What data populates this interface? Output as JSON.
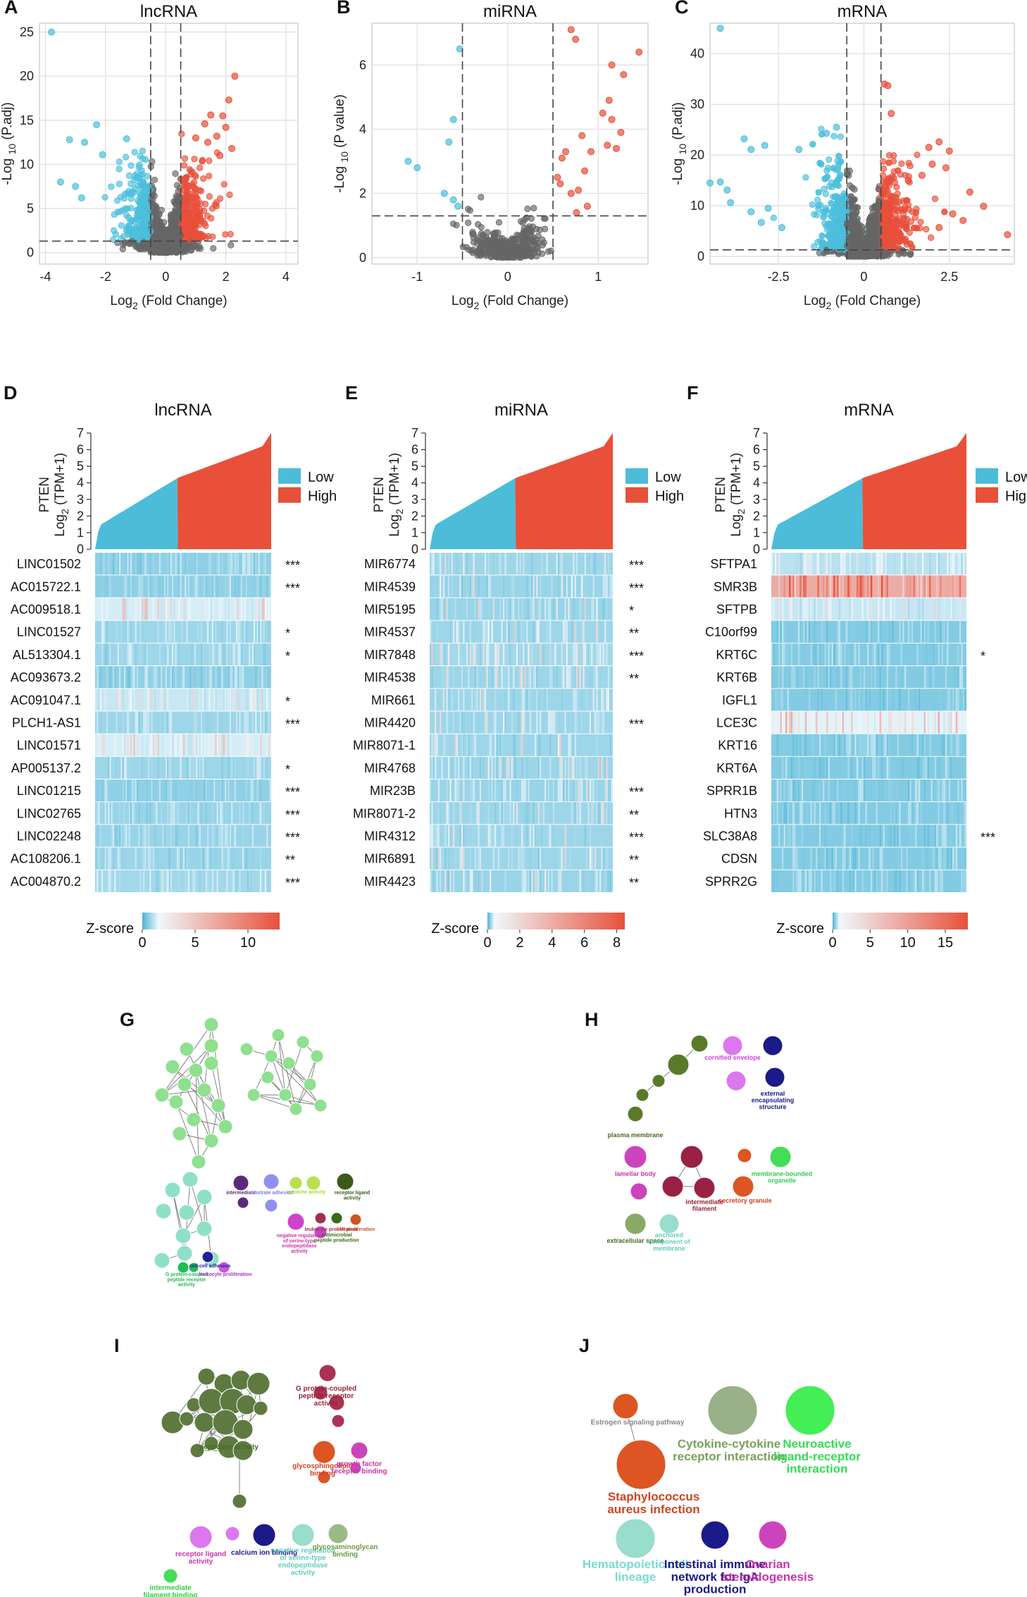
{
  "colors": {
    "up": "#e8503a",
    "down": "#4cbfdc",
    "ns": "#666666",
    "grid": "#e3e3e3",
    "low": "#4cbcd9",
    "high": "#e8503a",
    "heat": "#4fb3d3"
  },
  "chart_data": [
    {
      "type": "scatter",
      "label": "A",
      "title": "lncRNA",
      "xlabel": "Log2 (Fold Change)",
      "ylabel": "-Log 10 (P.adj)",
      "xlim": [
        -4.2,
        4.4
      ],
      "ylim": [
        -1.3,
        26
      ],
      "xticks": [
        -4,
        -2,
        0,
        2,
        4
      ],
      "yticks": [
        0,
        5,
        10,
        15,
        20,
        25
      ],
      "fc_cutoff": [
        -0.5,
        0.5
      ],
      "p_cutoff": 1.3,
      "highlight_up": [
        [
          2.3,
          20
        ],
        [
          2.1,
          17.3
        ],
        [
          1.9,
          15.5
        ],
        [
          1.5,
          15.6
        ],
        [
          1.3,
          14.6
        ],
        [
          2.0,
          14.2
        ],
        [
          1.7,
          13.2
        ],
        [
          1.0,
          13.0
        ],
        [
          1.4,
          12.5
        ],
        [
          2.2,
          11.8
        ],
        [
          1.8,
          11.0
        ]
      ],
      "highlight_down": [
        [
          -3.8,
          25
        ],
        [
          -2.3,
          14.5
        ],
        [
          -3.2,
          12.8
        ],
        [
          -2.7,
          12.5
        ],
        [
          -2.1,
          11.1
        ],
        [
          -1.3,
          12.9
        ],
        [
          -3.5,
          8
        ],
        [
          -3.0,
          7.5
        ],
        [
          -2.8,
          6.2
        ]
      ]
    },
    {
      "type": "scatter",
      "label": "B",
      "title": "miRNA",
      "xlabel": "Log2 (Fold Change)",
      "ylabel": "-Log 10 (P value)",
      "xlim": [
        -1.5,
        1.55
      ],
      "ylim": [
        -0.2,
        7.3
      ],
      "xticks": [
        -1,
        0,
        1
      ],
      "yticks": [
        0,
        2,
        4,
        6
      ],
      "fc_cutoff": [
        -0.5,
        0.5
      ],
      "p_cutoff": 1.3,
      "highlight_up": [
        [
          0.7,
          7.1
        ],
        [
          0.75,
          6.8
        ],
        [
          1.45,
          6.4
        ],
        [
          1.15,
          6.0
        ],
        [
          1.28,
          5.7
        ],
        [
          1.12,
          4.9
        ],
        [
          1.05,
          4.5
        ],
        [
          1.15,
          4.3
        ],
        [
          1.25,
          3.9
        ],
        [
          0.82,
          3.8
        ],
        [
          1.1,
          3.5
        ],
        [
          1.2,
          3.4
        ],
        [
          0.6,
          3.1
        ],
        [
          0.92,
          3.3
        ],
        [
          0.55,
          2.5
        ],
        [
          0.58,
          2.3
        ],
        [
          0.7,
          2.0
        ],
        [
          0.85,
          2.7
        ],
        [
          0.78,
          2.1
        ],
        [
          0.64,
          3.3
        ],
        [
          0.76,
          1.4
        ],
        [
          0.88,
          1.6
        ]
      ],
      "highlight_down": [
        [
          -0.53,
          6.5
        ],
        [
          -0.6,
          4.3
        ],
        [
          -0.65,
          3.6
        ],
        [
          -1.1,
          3.0
        ],
        [
          -1.0,
          2.8
        ],
        [
          -0.7,
          2.0
        ],
        [
          -0.6,
          1.8
        ],
        [
          -0.55,
          1.6
        ]
      ]
    },
    {
      "type": "scatter",
      "label": "C",
      "title": "mRNA",
      "xlabel": "Log2 (Fold Change)",
      "ylabel": "-Log 10 (P.adj)",
      "xlim": [
        -4.5,
        4.4
      ],
      "ylim": [
        -1.5,
        46
      ],
      "xticks": [
        -2.5,
        0,
        2.5
      ],
      "yticks": [
        0,
        10,
        20,
        30,
        40
      ],
      "fc_cutoff": [
        -0.5,
        0.5
      ],
      "p_cutoff": 1.3,
      "highlight_up": [
        [
          0.6,
          34
        ],
        [
          0.7,
          33.7
        ],
        [
          0.8,
          28.2
        ],
        [
          2.2,
          22.6
        ],
        [
          1.9,
          21.5
        ],
        [
          2.5,
          20.8
        ],
        [
          2.0,
          18.2
        ],
        [
          2.4,
          17.5
        ],
        [
          3.1,
          12.7
        ],
        [
          3.5,
          9.9
        ],
        [
          4.2,
          4.3
        ],
        [
          2.6,
          8.4
        ],
        [
          2.9,
          7.1
        ],
        [
          2.2,
          5.7
        ],
        [
          1.7,
          16
        ],
        [
          1.3,
          15
        ]
      ],
      "highlight_down": [
        [
          -4.2,
          45
        ],
        [
          -3.5,
          23.2
        ],
        [
          -3.3,
          21.1
        ],
        [
          -2.9,
          21.9
        ],
        [
          -4.2,
          14.7
        ],
        [
          -4.0,
          13.1
        ],
        [
          -3.9,
          10.6
        ],
        [
          -2.8,
          9.5
        ],
        [
          -3.3,
          8.8
        ],
        [
          -3.0,
          6.7
        ],
        [
          -2.4,
          5.7
        ],
        [
          -1.9,
          21.1
        ],
        [
          -1.1,
          24.3
        ],
        [
          -0.8,
          25.5
        ],
        [
          -4.5,
          14.5
        ]
      ]
    }
  ],
  "labels": {
    "D": "D",
    "E": "E",
    "F": "F",
    "G": "G",
    "H": "H",
    "I": "I",
    "J": "J"
  },
  "heat": {
    "legend": {
      "low": "Low",
      "high": "High"
    },
    "ylabel_a": "PTEN",
    "ylabel_b": "Log2 (TPM+1)",
    "zscore": "Z-score",
    "yticks": [
      0,
      1,
      2,
      3,
      4,
      5,
      6,
      7
    ],
    "panels": [
      {
        "label": "D",
        "title": "lncRNA",
        "ztick": [
          0,
          5,
          10
        ],
        "zmax": 13,
        "genes": [
          "LINC01502",
          "AC015722.1",
          "AC009518.1",
          "LINC01527",
          "AL513304.1",
          "AC093673.2",
          "AC091047.1",
          "PLCH1-AS1",
          "LINC01571",
          "AP005137.2",
          "LINC01215",
          "LINC02765",
          "LINC02248",
          "AC108206.1",
          "AC004870.2"
        ],
        "sig": [
          "***",
          "***",
          "",
          "*",
          "*",
          "",
          "*",
          "***",
          "",
          "*",
          "***",
          "***",
          "***",
          "**",
          "***"
        ],
        "mean": [
          0.25,
          0.25,
          0.5,
          0.3,
          0.3,
          0.25,
          0.45,
          0.3,
          0.5,
          0.3,
          0.25,
          0.28,
          0.28,
          0.28,
          0.32
        ]
      },
      {
        "label": "E",
        "title": "miRNA",
        "ztick": [
          0,
          2,
          4,
          6,
          8
        ],
        "zmax": 8.5,
        "genes": [
          "MIR6774",
          "MIR4539",
          "MIR5195",
          "MIR4537",
          "MIR7848",
          "MIR4538",
          "MIR661",
          "MIR4420",
          "MIR8071-1",
          "MIR4768",
          "MIR23B",
          "MIR8071-2",
          "MIR4312",
          "MIR6891",
          "MIR4423"
        ],
        "sig": [
          "***",
          "***",
          "*",
          "**",
          "***",
          "**",
          "",
          "***",
          "",
          "",
          "***",
          "**",
          "***",
          "**",
          "**"
        ],
        "mean": [
          0.3,
          0.28,
          0.28,
          0.3,
          0.32,
          0.3,
          0.3,
          0.3,
          0.3,
          0.3,
          0.28,
          0.3,
          0.3,
          0.3,
          0.28
        ]
      },
      {
        "label": "F",
        "title": "mRNA",
        "ztick": [
          0,
          5,
          10,
          15
        ],
        "zmax": 18,
        "genes": [
          "SFTPA1",
          "SMR3B",
          "SFTPB",
          "C10orf99",
          "KRT6C",
          "KRT6B",
          "IGFL1",
          "LCE3C",
          "KRT16",
          "KRT6A",
          "SPRR1B",
          "HTN3",
          "SLC38A8",
          "CDSN",
          "SPRR2G"
        ],
        "sig": [
          "",
          "",
          "",
          "",
          "*",
          "",
          "",
          "",
          "",
          "",
          "",
          "",
          "***",
          "",
          ""
        ],
        "mean": [
          0.4,
          0.78,
          0.45,
          0.2,
          0.2,
          0.2,
          0.2,
          0.55,
          0.2,
          0.2,
          0.2,
          0.2,
          0.2,
          0.2,
          0.2
        ]
      }
    ]
  },
  "networks": {
    "G": [
      {
        "text": "intermediate",
        "color": "#5a2a7a"
      },
      {
        "text": "substrate adhesion",
        "color": "#7a7af0"
      },
      {
        "text": "cytokine activity",
        "color": "#a8d93a"
      },
      {
        "text": "receptor ligand activity",
        "color": "#3a5a1a"
      },
      {
        "text": "negative regulation of serine-type endopeptidase activity",
        "color": "#cc33aa"
      },
      {
        "text": "leukocyte proliferation",
        "color": "#a03050"
      },
      {
        "text": "antimicrobial peptide production",
        "color": "#3a6a1a"
      },
      {
        "text": "cell proliferation",
        "color": "#cc5522"
      },
      {
        "text": "G protein-coupled peptide receptor activity",
        "color": "#22bb55"
      },
      {
        "text": "cell-cell adhesion",
        "color": "#222299"
      },
      {
        "text": "leukocyte proliferation",
        "color": "#aa33cc"
      }
    ],
    "H": [
      {
        "text": "cornified envelope",
        "color": "#cc44dd"
      },
      {
        "text": "external encapsulating structure",
        "color": "#1a1a88"
      },
      {
        "text": "plasma membrane",
        "color": "#4a6a22"
      },
      {
        "text": "lamellar body",
        "color": "#cc33aa"
      },
      {
        "text": "intermediate filament",
        "color": "#992233"
      },
      {
        "text": "secretory granule",
        "color": "#cc4422"
      },
      {
        "text": "membrane-bounded organelle",
        "color": "#33cc55"
      },
      {
        "text": "extracellular space",
        "color": "#4a6a22"
      },
      {
        "text": "anchored component of membrane",
        "color": "#66ccbb"
      }
    ],
    "I": [
      {
        "text": "G protein-coupled peptide receptor activity",
        "color": "#992233"
      },
      {
        "text": "glycosphingolipid binding",
        "color": "#cc4422"
      },
      {
        "text": "growth factor receptor binding",
        "color": "#cc33aa"
      },
      {
        "text": "receptor ligand activity",
        "color": "#cc33aa"
      },
      {
        "text": "calcium ion binding",
        "color": "#1a1a88"
      },
      {
        "text": "negative regulation of serine-type endopeptidase activity",
        "color": "#66ccbb"
      },
      {
        "text": "glycosaminoglycan binding",
        "color": "#6a9a44"
      },
      {
        "text": "intermediate filament binding",
        "color": "#33cc44"
      },
      {
        "text": "peptidase activity",
        "color": "#4a6a22"
      }
    ],
    "J": [
      {
        "text": "Estrogen signaling pathway",
        "color": "#888888"
      },
      {
        "text": "Cytokine-cytokine receptor interaction",
        "color": "#7aa05a"
      },
      {
        "text": "Neuroactive ligand-receptor interaction",
        "color": "#33dd55"
      },
      {
        "text": "Staphylococcus aureus infection",
        "color": "#cc4422"
      },
      {
        "text": "Hematopoietic cell lineage",
        "color": "#77ddcc"
      },
      {
        "text": "Intestinal immune network for IgA production",
        "color": "#1a1a88"
      },
      {
        "text": "Ovarian steroidogenesis",
        "color": "#cc33aa"
      }
    ]
  }
}
